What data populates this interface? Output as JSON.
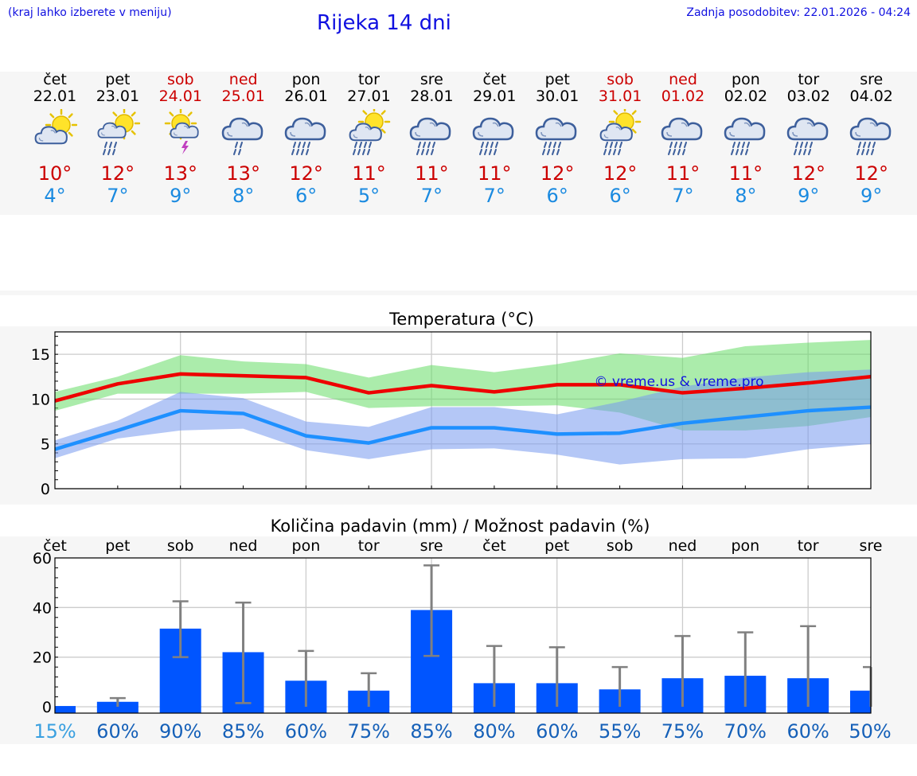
{
  "header": {
    "menu_hint": "(kraj lahko izberete v meniju)",
    "title": "Rijeka 14 dni",
    "updated": "Zadnja posodobitev: 22.01.2026 - 04:24"
  },
  "days": [
    {
      "weekday": "čet",
      "date": "22.01",
      "weekend": false,
      "icon": "sun-cloud-icon",
      "tmax": "10°",
      "tmin": "4°"
    },
    {
      "weekday": "pet",
      "date": "23.01",
      "weekend": false,
      "icon": "sun-cloud-rain-icon",
      "tmax": "12°",
      "tmin": "7°"
    },
    {
      "weekday": "sob",
      "date": "24.01",
      "weekend": true,
      "icon": "sun-cloud-storm-icon",
      "tmax": "13°",
      "tmin": "9°"
    },
    {
      "weekday": "ned",
      "date": "25.01",
      "weekend": true,
      "icon": "cloud-rain-icon",
      "tmax": "13°",
      "tmin": "8°"
    },
    {
      "weekday": "pon",
      "date": "26.01",
      "weekend": false,
      "icon": "cloud-heavy-rain-icon",
      "tmax": "12°",
      "tmin": "6°"
    },
    {
      "weekday": "tor",
      "date": "27.01",
      "weekend": false,
      "icon": "sun-cloud-heavy-rain-icon",
      "tmax": "11°",
      "tmin": "5°"
    },
    {
      "weekday": "sre",
      "date": "28.01",
      "weekend": false,
      "icon": "cloud-heavy-rain-icon",
      "tmax": "11°",
      "tmin": "7°"
    },
    {
      "weekday": "čet",
      "date": "29.01",
      "weekend": false,
      "icon": "cloud-heavy-rain-icon",
      "tmax": "11°",
      "tmin": "7°"
    },
    {
      "weekday": "pet",
      "date": "30.01",
      "weekend": false,
      "icon": "cloud-heavy-rain-icon",
      "tmax": "12°",
      "tmin": "6°"
    },
    {
      "weekday": "sob",
      "date": "31.01",
      "weekend": true,
      "icon": "sun-cloud-heavy-rain-icon",
      "tmax": "12°",
      "tmin": "6°"
    },
    {
      "weekday": "ned",
      "date": "01.02",
      "weekend": true,
      "icon": "cloud-heavy-rain-icon",
      "tmax": "11°",
      "tmin": "7°"
    },
    {
      "weekday": "pon",
      "date": "02.02",
      "weekend": false,
      "icon": "cloud-heavy-rain-icon",
      "tmax": "11°",
      "tmin": "8°"
    },
    {
      "weekday": "tor",
      "date": "03.02",
      "weekend": false,
      "icon": "cloud-heavy-rain-icon",
      "tmax": "12°",
      "tmin": "9°"
    },
    {
      "weekday": "sre",
      "date": "04.02",
      "weekend": false,
      "icon": "cloud-heavy-rain-icon",
      "tmax": "12°",
      "tmin": "9°"
    }
  ],
  "colors": {
    "max_line": "#ee0000",
    "max_band": "#66dd66",
    "min_line": "#1e90ff",
    "min_band": "#7799ee",
    "bar": "#0055ff",
    "errorbar": "#808080",
    "weekend": "#cc0000",
    "link": "#1010e0"
  },
  "chart_data": [
    {
      "type": "line",
      "title": "Temperatura (°C)",
      "watermark": "© vreme.us & vreme.pro",
      "ylim": [
        0,
        17.5
      ],
      "yticks": [
        0,
        5,
        10,
        15
      ],
      "x": [
        0,
        1,
        2,
        3,
        4,
        5,
        6,
        7,
        8,
        9,
        10,
        11,
        12,
        13
      ],
      "series": [
        {
          "name": "max",
          "values": [
            9.8,
            11.7,
            12.8,
            12.6,
            12.4,
            10.7,
            11.5,
            10.8,
            11.6,
            11.6,
            10.7,
            11.2,
            11.8,
            12.5
          ],
          "band_low": [
            8.7,
            10.6,
            10.6,
            10.6,
            10.8,
            9.0,
            9.2,
            9.2,
            9.3,
            8.5,
            6.5,
            6.5,
            7.0,
            8.0
          ],
          "band_high": [
            10.8,
            12.5,
            14.9,
            14.2,
            13.9,
            12.4,
            13.8,
            13.0,
            13.9,
            15.1,
            14.6,
            15.9,
            16.3,
            16.6
          ]
        },
        {
          "name": "min",
          "values": [
            4.4,
            6.5,
            8.7,
            8.4,
            5.9,
            5.1,
            6.8,
            6.8,
            6.1,
            6.2,
            7.3,
            8.0,
            8.7,
            9.1
          ],
          "band_low": [
            3.4,
            5.6,
            6.5,
            6.7,
            4.3,
            3.3,
            4.4,
            4.5,
            3.8,
            2.7,
            3.3,
            3.4,
            4.4,
            5.0
          ],
          "band_high": [
            5.4,
            7.6,
            10.8,
            10.1,
            7.5,
            6.9,
            9.1,
            9.1,
            8.3,
            9.7,
            11.4,
            12.4,
            13.0,
            13.3
          ]
        }
      ]
    },
    {
      "type": "bar",
      "title": "Količina padavin (mm) / Možnost padavin (%)",
      "ylim": [
        0,
        60
      ],
      "yticks": [
        0,
        20,
        40,
        60
      ],
      "categories": [
        "čet",
        "pet",
        "sob",
        "ned",
        "pon",
        "tor",
        "sre",
        "čet",
        "pet",
        "sob",
        "ned",
        "pon",
        "tor",
        "sre"
      ],
      "values": [
        0.3,
        2,
        31.5,
        22,
        10.5,
        6.5,
        39,
        9.5,
        9.5,
        7,
        11.5,
        12.5,
        11.5,
        6.5
      ],
      "err_low": [
        0,
        0,
        20,
        1.5,
        0,
        0,
        20.5,
        0,
        0,
        0,
        0,
        0,
        0,
        0
      ],
      "err_high": [
        0,
        3.5,
        42.5,
        42,
        22.5,
        13.5,
        57,
        24.5,
        24,
        16,
        28.5,
        30,
        32.5,
        16
      ],
      "probability": [
        "15%",
        "60%",
        "90%",
        "85%",
        "60%",
        "75%",
        "85%",
        "80%",
        "60%",
        "55%",
        "75%",
        "70%",
        "60%",
        "50%"
      ]
    }
  ]
}
